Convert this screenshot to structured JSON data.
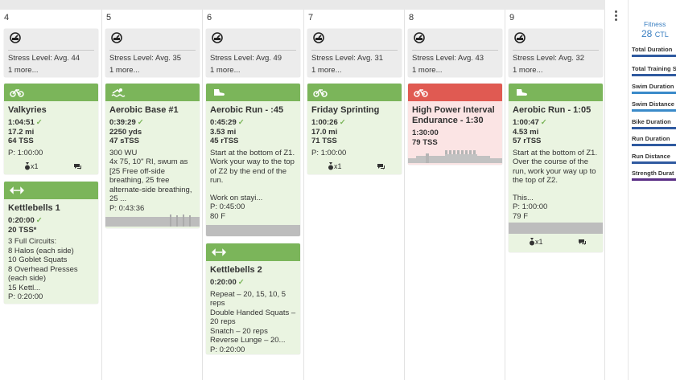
{
  "days": [
    {
      "num": "4"
    },
    {
      "num": "5"
    },
    {
      "num": "6"
    },
    {
      "num": "7"
    },
    {
      "num": "8"
    },
    {
      "num": "9"
    }
  ],
  "stress": [
    {
      "level": "Stress Level: Avg. 44",
      "more": "1 more..."
    },
    {
      "level": "Stress Level: Avg. 35",
      "more": "1 more..."
    },
    {
      "level": "Stress Level: Avg. 49",
      "more": "1 more..."
    },
    {
      "level": "Stress Level: Avg. 31",
      "more": "1 more..."
    },
    {
      "level": "Stress Level: Avg. 43",
      "more": "1 more..."
    },
    {
      "level": "Stress Level: Avg. 32",
      "more": "1 more..."
    }
  ],
  "workouts": {
    "valkyries": {
      "icon": "bike-icon",
      "title": "Valkyries",
      "duration": "1:04:51",
      "distance": "17.2 mi",
      "tss": "64 TSS",
      "plan": "P: 1:00:00",
      "medal": "x1"
    },
    "kettlebells1": {
      "icon": "strength-icon",
      "title": "Kettlebells 1",
      "duration": "0:20:00",
      "tss": "20 TSS*",
      "desc": "3 Full Circuits:\n8 Halos (each side)\n10 Goblet Squats\n8 Overhead Presses (each side)\n15 Kettl...",
      "plan": "P: 0:20:00"
    },
    "aerobic_base": {
      "icon": "swim-icon",
      "title": "Aerobic Base #1",
      "duration": "0:39:29",
      "distance": "2250 yds",
      "tss": "47 sTSS",
      "desc": "300 WU\n4x 75, 10\" RI, swum as [25 Free off-side breathing, 25 free alternate-side breathing, 25 ...",
      "plan": "P: 0:43:36"
    },
    "aerobic_run45": {
      "icon": "run-icon",
      "title": "Aerobic Run - :45",
      "duration": "0:45:29",
      "distance": "3.53 mi",
      "tss": "45 rTSS",
      "desc": "Start at the bottom of Z1. Work your way to the top of Z2 by the end of the run.",
      "desc2": "Work on stayi...",
      "plan": "P: 0:45:00",
      "temp": "80 F"
    },
    "kettlebells2": {
      "icon": "strength-icon",
      "title": "Kettlebells 2",
      "duration": "0:20:00",
      "desc": "Repeat – 20, 15, 10, 5 reps\nDouble Handed Squats – 20 reps\nSnatch – 20 reps\nReverse Lunge – 20...",
      "plan": "P: 0:20:00"
    },
    "friday_sprinting": {
      "icon": "bike-icon",
      "title": "Friday Sprinting",
      "duration": "1:00:26",
      "distance": "17.0 mi",
      "tss": "71 TSS",
      "plan": "P: 1:00:00",
      "medal": "x1"
    },
    "high_power": {
      "icon": "bike-icon",
      "title": "High Power Interval Endurance - 1:30",
      "duration": "1:30:00",
      "tss": "79 TSS"
    },
    "aerobic_run105": {
      "icon": "run-icon",
      "title": "Aerobic Run - 1:05",
      "duration": "1:00:47",
      "distance": "4.53 mi",
      "tss": "57 rTSS",
      "desc": "Start at the bottom of Z1. Over the course of the run, work your way up to the top of Z2.",
      "desc2": "This...",
      "plan": "P: 1:00:00",
      "temp": "79 F",
      "medal": "x1"
    }
  },
  "sidebar": {
    "fitness_label": "Fitness",
    "fitness_value": "28",
    "fitness_unit": "CTL",
    "metrics": [
      {
        "label": "Total Duration",
        "color": "#2f5aa0"
      },
      {
        "label": "Total Training S",
        "color": "#2f5aa0"
      },
      {
        "label": "Swim Duration",
        "color": "#3a8ac9"
      },
      {
        "label": "Swim Distance",
        "color": "#3a8ac9"
      },
      {
        "label": "Bike Duration",
        "color": "#2f5aa0"
      },
      {
        "label": "Run Duration",
        "color": "#2f5aa0"
      },
      {
        "label": "Run Distance",
        "color": "#2f5aa0"
      },
      {
        "label": "Strength Durat",
        "color": "#5b2f86"
      }
    ]
  },
  "colors": {
    "green": "#7bb55a",
    "red": "#e05a52",
    "accent": "#3a7fc1"
  }
}
